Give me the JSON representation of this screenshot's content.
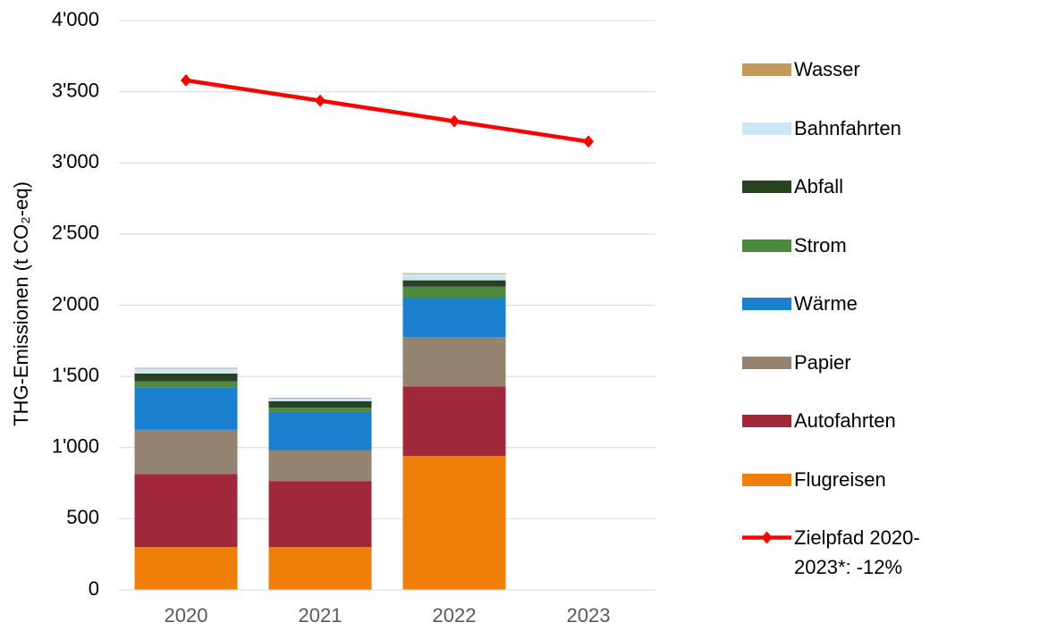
{
  "chart_data": {
    "type": "bar",
    "ylabel": "THG-Emissionen (t CO₂-eq)",
    "categories": [
      "2020",
      "2021",
      "2022",
      "2023"
    ],
    "series": [
      {
        "name": "Flugreisen",
        "color": "#f07f09",
        "values": [
          300,
          300,
          940,
          null
        ]
      },
      {
        "name": "Autofahrten",
        "color": "#a0283a",
        "values": [
          515,
          465,
          490,
          null
        ]
      },
      {
        "name": "Papier",
        "color": "#938370",
        "values": [
          310,
          215,
          345,
          null
        ]
      },
      {
        "name": "Wärme",
        "color": "#1a7fcf",
        "values": [
          295,
          270,
          275,
          null
        ]
      },
      {
        "name": "Strom",
        "color": "#4e8a3e",
        "values": [
          45,
          30,
          80,
          null
        ]
      },
      {
        "name": "Abfall",
        "color": "#264221",
        "values": [
          55,
          45,
          45,
          null
        ]
      },
      {
        "name": "Bahnfahrten",
        "color": "#cce6f6",
        "values": [
          35,
          20,
          45,
          null
        ]
      },
      {
        "name": "Wasser",
        "color": "#c39a5b",
        "values": [
          5,
          5,
          5,
          null
        ]
      },
      {
        "name": "Zielpfad 2020-2023*: -12%",
        "type": "line",
        "color": "#ff0000",
        "values": [
          3580,
          3437,
          3293,
          3150
        ]
      }
    ],
    "ylim": [
      0,
      4000
    ],
    "yticks": [
      0,
      500,
      {
        "value": 1000,
        "label": "1'000"
      },
      {
        "value": 1500,
        "label": "1'500"
      },
      {
        "value": 2000,
        "label": "2'000"
      },
      {
        "value": 2500,
        "label": "2'500"
      },
      {
        "value": 3000,
        "label": "3'000"
      },
      {
        "value": 3500,
        "label": "3'500"
      },
      {
        "value": 4000,
        "label": "4'000"
      }
    ],
    "grid": true
  }
}
